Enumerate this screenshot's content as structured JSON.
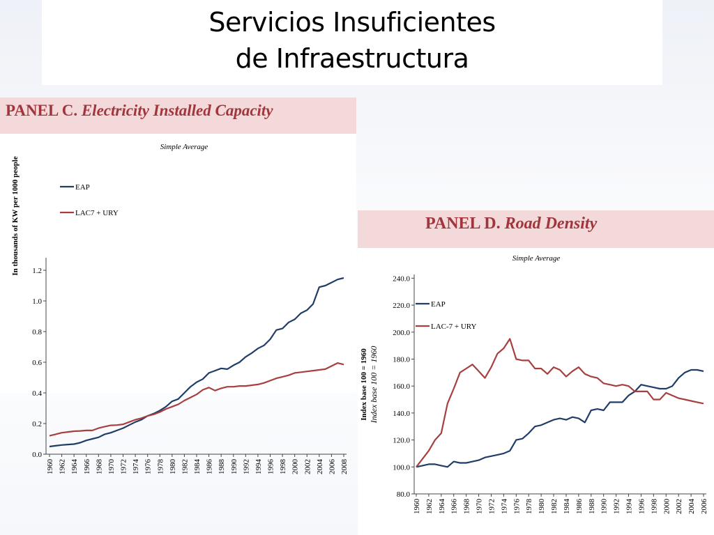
{
  "slide": {
    "title_line1": "Servicios Insuficientes",
    "title_line2": "de Infraestructura"
  },
  "colors": {
    "eap": "#1f3d66",
    "lac": "#a83f3f",
    "header_bg": "#f3d9da",
    "header_text": "#a0353c"
  },
  "chart_data": [
    {
      "type": "line",
      "panel_label": "PANEL C.",
      "panel_title": "Electricity Installed Capacity",
      "subtitle": "Simple Average",
      "ylabel": "In thousands of KW per 1000 people",
      "ylim": [
        0,
        1.2
      ],
      "yticks": [
        "0.0",
        "0.2",
        "0.4",
        "0.6",
        "0.8",
        "1.0",
        "1.2"
      ],
      "xticks": [
        "1960",
        "1962",
        "1964",
        "1966",
        "1968",
        "1970",
        "1972",
        "1974",
        "1976",
        "1978",
        "1980",
        "1982",
        "1984",
        "1986",
        "1988",
        "1990",
        "1992",
        "1994",
        "1996",
        "1998",
        "2000",
        "2002",
        "2004",
        "2006",
        "2008"
      ],
      "legend_position": "top-left",
      "x": [
        1960,
        1961,
        1962,
        1963,
        1964,
        1965,
        1966,
        1967,
        1968,
        1969,
        1970,
        1971,
        1972,
        1973,
        1974,
        1975,
        1976,
        1977,
        1978,
        1979,
        1980,
        1981,
        1982,
        1983,
        1984,
        1985,
        1986,
        1987,
        1988,
        1989,
        1990,
        1991,
        1992,
        1993,
        1994,
        1995,
        1996,
        1997,
        1998,
        1999,
        2000,
        2001,
        2002,
        2003,
        2004,
        2005,
        2006,
        2007,
        2008
      ],
      "series": [
        {
          "name": "EAP",
          "values": [
            0.05,
            0.055,
            0.06,
            0.063,
            0.066,
            0.075,
            0.09,
            0.1,
            0.11,
            0.13,
            0.14,
            0.155,
            0.17,
            0.19,
            0.21,
            0.225,
            0.25,
            0.265,
            0.285,
            0.31,
            0.345,
            0.36,
            0.4,
            0.44,
            0.47,
            0.49,
            0.53,
            0.545,
            0.56,
            0.555,
            0.58,
            0.6,
            0.635,
            0.66,
            0.69,
            0.71,
            0.75,
            0.81,
            0.82,
            0.86,
            0.88,
            0.92,
            0.94,
            0.98,
            1.09,
            1.1,
            1.12,
            1.14,
            1.15
          ]
        },
        {
          "name": "LAC7 + URY",
          "values": [
            0.12,
            0.13,
            0.14,
            0.145,
            0.15,
            0.152,
            0.155,
            0.155,
            0.17,
            0.18,
            0.188,
            0.19,
            0.195,
            0.21,
            0.225,
            0.235,
            0.25,
            0.26,
            0.275,
            0.295,
            0.31,
            0.325,
            0.35,
            0.37,
            0.39,
            0.42,
            0.435,
            0.415,
            0.43,
            0.44,
            0.44,
            0.445,
            0.445,
            0.45,
            0.455,
            0.465,
            0.48,
            0.495,
            0.505,
            0.515,
            0.53,
            0.535,
            0.54,
            0.545,
            0.55,
            0.555,
            0.575,
            0.595,
            0.585
          ]
        }
      ]
    },
    {
      "type": "line",
      "panel_label": "PANEL D.",
      "panel_title": "Road Density",
      "subtitle": "Simple Average",
      "ylabel": "Index base 100 = 1960",
      "ylabel2": "Index base 100 = 1960",
      "ylim": [
        80,
        250
      ],
      "yticks": [
        "80.0",
        "100.0",
        "120.0",
        "140.0",
        "160.0",
        "180.0",
        "200.0",
        "220.0",
        "240.0"
      ],
      "xticks": [
        "1960",
        "1962",
        "1964",
        "1966",
        "1968",
        "1970",
        "1972",
        "1974",
        "1976",
        "1978",
        "1980",
        "1982",
        "1984",
        "1986",
        "1988",
        "1990",
        "1992",
        "1994",
        "1996",
        "1998",
        "2000",
        "2002",
        "2004",
        "2006"
      ],
      "legend_position": "top-left",
      "x": [
        1960,
        1961,
        1962,
        1963,
        1964,
        1965,
        1966,
        1967,
        1968,
        1969,
        1970,
        1971,
        1972,
        1973,
        1974,
        1975,
        1976,
        1977,
        1978,
        1979,
        1980,
        1981,
        1982,
        1983,
        1984,
        1985,
        1986,
        1987,
        1988,
        1989,
        1990,
        1991,
        1992,
        1993,
        1994,
        1995,
        1996,
        1997,
        1998,
        1999,
        2000,
        2001,
        2002,
        2003,
        2004,
        2005,
        2006
      ],
      "series": [
        {
          "name": "EAP",
          "values": [
            100,
            101,
            102,
            102,
            101,
            100,
            104,
            103,
            103,
            104,
            105,
            107,
            108,
            109,
            110,
            112,
            120,
            121,
            125,
            130,
            131,
            133,
            135,
            136,
            135,
            137,
            136,
            133,
            142,
            143,
            142,
            148,
            148,
            148,
            153,
            156,
            161,
            160,
            159,
            158,
            158,
            160,
            166,
            170,
            172,
            172,
            171
          ]
        },
        {
          "name": "LAC-7 + URY",
          "values": [
            100,
            106,
            112,
            120,
            125,
            147,
            158,
            170,
            173,
            176,
            171,
            166,
            174,
            184,
            188,
            195,
            180,
            179,
            179,
            173,
            173,
            169,
            174,
            172,
            167,
            171,
            174,
            169,
            167,
            166,
            162,
            161,
            160,
            161,
            160,
            156,
            156,
            156,
            150,
            150,
            155,
            153,
            151,
            150,
            149,
            148,
            147
          ]
        }
      ]
    }
  ]
}
